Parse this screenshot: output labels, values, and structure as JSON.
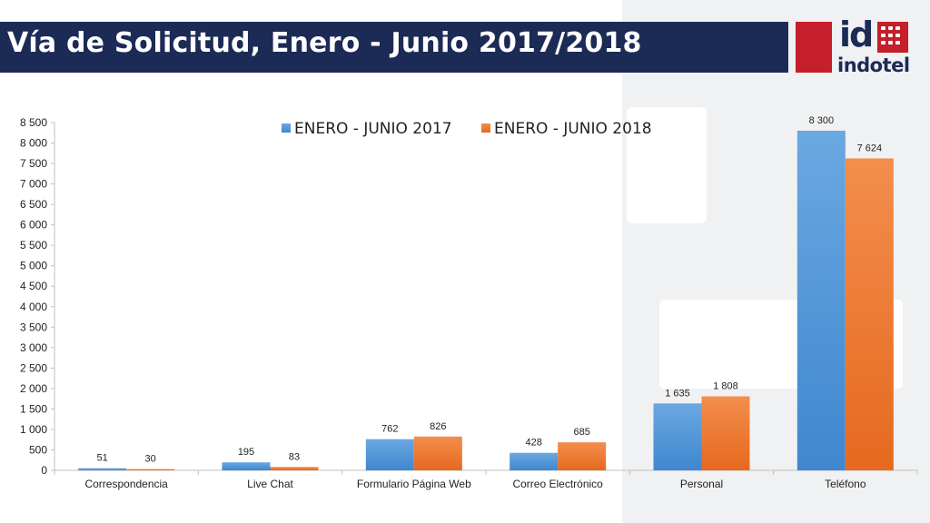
{
  "header": {
    "title": "Vía de Solicitud, Enero - Junio 2017/2018"
  },
  "logo": {
    "mark": "id",
    "name": "indotel"
  },
  "colors": {
    "title_bar": "#1c2a56",
    "logo_red": "#c41f2a",
    "series_2017": "#4e95d9",
    "series_2018": "#f07b2d"
  },
  "chart_data": {
    "type": "bar",
    "title": "",
    "xlabel": "",
    "ylabel": "",
    "ylim": [
      0,
      8500
    ],
    "yticks": [
      "0",
      "500",
      "1 000",
      "1 500",
      "2 000",
      "2 500",
      "3 000",
      "3 500",
      "4 000",
      "4 500",
      "5 000",
      "5 500",
      "6 000",
      "6 500",
      "7 000",
      "7 500",
      "8 000",
      "8 500"
    ],
    "categories": [
      "Correspondencia",
      "Live Chat",
      "Formulario Página Web",
      "Correo Electrónico",
      "Personal",
      "Teléfono"
    ],
    "series": [
      {
        "name": "ENERO - JUNIO 2017",
        "values": [
          51,
          195,
          762,
          428,
          1635,
          8300
        ],
        "labels": [
          "51",
          "195",
          "762",
          "428",
          "1 635",
          "8 300"
        ]
      },
      {
        "name": "ENERO - JUNIO 2018",
        "values": [
          30,
          83,
          826,
          685,
          1808,
          7624
        ],
        "labels": [
          "30",
          "83",
          "826",
          "685",
          "1 808",
          "7 624"
        ]
      }
    ],
    "legend_position": "top",
    "grid": false
  }
}
